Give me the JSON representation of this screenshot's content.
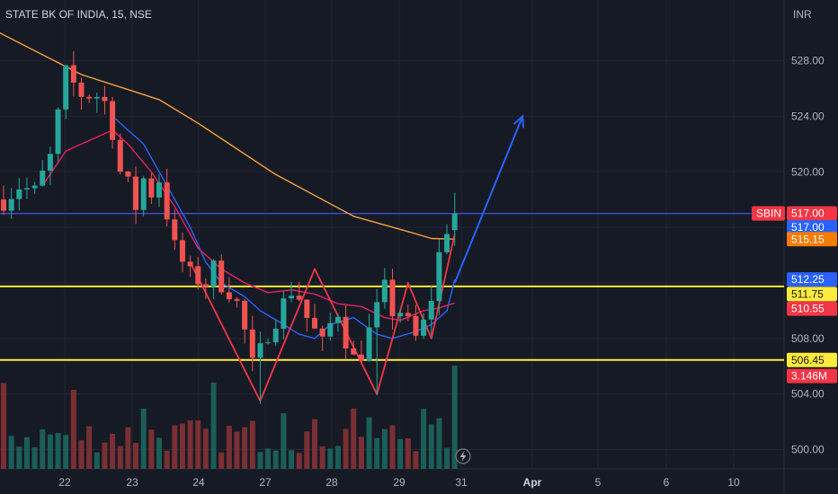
{
  "header": {
    "symbol_title": "STATE BK OF INDIA, 15, NSE",
    "currency": "INR"
  },
  "chart_data": {
    "type": "candlestick",
    "title": "STATE BK OF INDIA, 15, NSE",
    "ylabel": "INR",
    "ylim": [
      499.0,
      531.4
    ],
    "y_ticks": [
      500.0,
      504.0,
      508.0,
      512.0,
      516.0,
      520.0,
      524.0,
      528.0
    ],
    "y_tick_labels": [
      "500.00",
      "504.00",
      "508.00",
      "512.00",
      "516.00",
      "520.00",
      "524.00",
      "528.00"
    ],
    "x_tick_labels": [
      "22",
      "23",
      "24",
      "27",
      "28",
      "29",
      "31",
      "Apr",
      "5",
      "6",
      "10"
    ],
    "trading_days": [
      "22",
      "23",
      "24",
      "27",
      "28",
      "29",
      "31"
    ],
    "future_ticks": [
      "Apr",
      "5",
      "6",
      "10"
    ],
    "grid": true,
    "colors": {
      "background": "#161a25",
      "grid": "#232632",
      "axis_text": "#b2b5be",
      "up": "#26a69a",
      "down": "#ef5350",
      "vol_up": "#1b5e57",
      "vol_down": "#7a2f33",
      "sma_long": "#f7a13a",
      "ema_short": "#2962ff",
      "ema_mid": "#e91e63",
      "zigzag": "#f23645",
      "arrow": "#2962ff",
      "hline_blue": "#3d4fd6",
      "hline_yellow": "#ffeb3b"
    },
    "horizontal_lines": [
      {
        "price": 517.0,
        "color": "#3d4fd6"
      },
      {
        "price": 511.75,
        "color": "#ffeb3b"
      },
      {
        "price": 506.45,
        "color": "#ffeb3b"
      }
    ],
    "price_path": [
      [
        0,
        518.0
      ],
      [
        2,
        519.0
      ],
      [
        4,
        518.5
      ],
      [
        6,
        521.0
      ],
      [
        8,
        527.0
      ],
      [
        10,
        525.6
      ],
      [
        12,
        525.5
      ],
      [
        13,
        525.0
      ],
      [
        14,
        523.0
      ],
      [
        15,
        520.0
      ],
      [
        16,
        519.0
      ],
      [
        17,
        517.5
      ],
      [
        18,
        519.5
      ],
      [
        19,
        518.5
      ],
      [
        20,
        519.5
      ],
      [
        21,
        517.0
      ],
      [
        22,
        514.5
      ],
      [
        24,
        512.5
      ],
      [
        25,
        512.3
      ],
      [
        26,
        512.0
      ],
      [
        27,
        513.0
      ],
      [
        28,
        512.0
      ],
      [
        29,
        511.5
      ],
      [
        30,
        510.5
      ],
      [
        31,
        508.5
      ],
      [
        32,
        506.0
      ],
      [
        33,
        507.0
      ],
      [
        34,
        508.5
      ],
      [
        35,
        509.5
      ],
      [
        36,
        510.5
      ],
      [
        37,
        511.5
      ],
      [
        38,
        511.0
      ],
      [
        39,
        509.5
      ],
      [
        40,
        508.5
      ],
      [
        41,
        507.5
      ],
      [
        42,
        509.0
      ],
      [
        43,
        510.0
      ],
      [
        44,
        508.0
      ],
      [
        45,
        506.5
      ],
      [
        46,
        507.0
      ],
      [
        47,
        508.5
      ],
      [
        48,
        510.0
      ],
      [
        49,
        511.5
      ],
      [
        50,
        510.0
      ],
      [
        51,
        510.0
      ],
      [
        52,
        509.0
      ],
      [
        53,
        508.0
      ],
      [
        54,
        509.0
      ],
      [
        55,
        511.0
      ],
      [
        56,
        514.0
      ],
      [
        57,
        516.0
      ],
      [
        58,
        517.5
      ]
    ],
    "series": [
      {
        "name": "",
        "color": "#f7a13a",
        "points": [
          [
            -0.5,
            530.0
          ],
          [
            10,
            527.0
          ],
          [
            20,
            525.2
          ],
          [
            25,
            523.5
          ],
          [
            35,
            519.8
          ],
          [
            45,
            516.8
          ],
          [
            52,
            515.7
          ],
          [
            55,
            515.2
          ],
          [
            58,
            515.15
          ]
        ]
      },
      {
        "name": "",
        "color": "#2962ff",
        "points": [
          [
            14,
            524.0
          ],
          [
            18,
            522.0
          ],
          [
            21,
            519.0
          ],
          [
            24,
            516.0
          ],
          [
            26,
            513.5
          ],
          [
            28,
            512.0
          ],
          [
            31,
            511.0
          ],
          [
            33,
            510.0
          ],
          [
            36,
            509.0
          ],
          [
            38,
            508.3
          ],
          [
            40,
            508.0
          ],
          [
            42,
            509.0
          ],
          [
            45,
            509.5
          ],
          [
            48,
            508.3
          ],
          [
            50,
            508.0
          ],
          [
            53,
            508.5
          ],
          [
            55,
            509.0
          ],
          [
            57,
            510.0
          ],
          [
            58,
            512.25
          ]
        ]
      },
      {
        "name": "",
        "color": "#e91e63",
        "points": [
          [
            5,
            519.0
          ],
          [
            8,
            521.5
          ],
          [
            14,
            523.0
          ],
          [
            16,
            522.0
          ],
          [
            19,
            520.0
          ],
          [
            22,
            517.5
          ],
          [
            25,
            514.5
          ],
          [
            28,
            513.0
          ],
          [
            31,
            512.0
          ],
          [
            34,
            511.3
          ],
          [
            37,
            511.5
          ],
          [
            40,
            511.2
          ],
          [
            43,
            510.5
          ],
          [
            46,
            510.3
          ],
          [
            49,
            509.5
          ],
          [
            51,
            509.3
          ],
          [
            54,
            510.0
          ],
          [
            56,
            510.2
          ],
          [
            58,
            510.55
          ]
        ]
      },
      {
        "name": "",
        "color": "#f23645",
        "points": [
          [
            24,
            513.5
          ],
          [
            33,
            503.5
          ],
          [
            40,
            513.0
          ],
          [
            48,
            504.0
          ],
          [
            52,
            512.0
          ],
          [
            55,
            508.0
          ],
          [
            58,
            515.5
          ]
        ]
      }
    ],
    "arrow": {
      "from": [
        58,
        512.0
      ],
      "to": [
        65,
        524.0
      ],
      "color": "#2962ff"
    },
    "price_labels": [
      {
        "text": "517.00",
        "price": 517.0,
        "bg": "#f23645",
        "fg": "#ffffff",
        "tag": "SBIN"
      },
      {
        "text": "517.00",
        "price": 516.0,
        "bg": "#2962ff",
        "fg": "#ffffff"
      },
      {
        "text": "515.15",
        "price": 515.15,
        "bg": "#f57c00",
        "fg": "#ffffff"
      },
      {
        "text": "512.25",
        "price": 512.25,
        "bg": "#2962ff",
        "fg": "#ffffff"
      },
      {
        "text": "511.75",
        "price": 511.2,
        "bg": "#ffeb3b",
        "fg": "#131722"
      },
      {
        "text": "510.55",
        "price": 510.15,
        "bg": "#f23645",
        "fg": "#ffffff"
      },
      {
        "text": "506.45",
        "price": 506.45,
        "bg": "#ffeb3b",
        "fg": "#131722"
      },
      {
        "text": "3.146M",
        "price": 505.3,
        "bg": "#f23645",
        "fg": "#ffffff"
      }
    ],
    "volume_label": "3.146M"
  }
}
